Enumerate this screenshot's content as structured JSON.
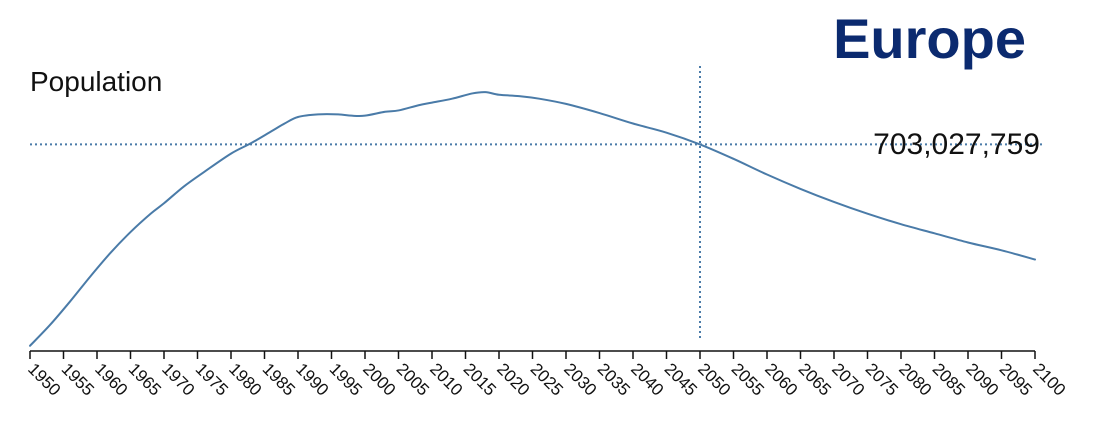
{
  "title": "Europe",
  "colors": {
    "title": "#0b2a6f",
    "line": "#4a7ba8",
    "crosshair": "#4a7ba8",
    "axis": "#111111"
  },
  "readout": {
    "year": 2050,
    "value_text": "703,027,759"
  },
  "chart_data": {
    "type": "line",
    "title": "Europe",
    "ylabel": "Population",
    "xlabel": "",
    "xlim": [
      1950,
      2100
    ],
    "ylim": [
      545000000,
      763000000
    ],
    "grid": false,
    "legend": "none",
    "x_ticks": [
      1950,
      1955,
      1960,
      1965,
      1970,
      1975,
      1980,
      1985,
      1990,
      1995,
      2000,
      2005,
      2010,
      2015,
      2020,
      2025,
      2030,
      2035,
      2040,
      2045,
      2050,
      2055,
      2060,
      2065,
      2070,
      2075,
      2080,
      2085,
      2090,
      2095,
      2100
    ],
    "series": [
      {
        "x": [
          1950,
          1953,
          1956,
          1959,
          1962,
          1965,
          1968,
          1970,
          1973,
          1976,
          1980,
          1983,
          1986,
          1988,
          1990,
          1993,
          1996,
          1998,
          2000,
          2003,
          2005,
          2008,
          2010,
          2013,
          2016,
          2018,
          2020,
          2023,
          2026,
          2030,
          2035,
          2040,
          2045,
          2050,
          2055,
          2060,
          2065,
          2070,
          2075,
          2080,
          2085,
          2090,
          2095,
          2100
        ],
        "y": [
          549000000,
          565000000,
          583000000,
          602000000,
          620000000,
          636000000,
          650000000,
          658000000,
          671000000,
          682000000,
          696000000,
          704000000,
          713000000,
          719000000,
          724000000,
          726000000,
          726000000,
          725000000,
          725000000,
          728000000,
          729000000,
          733000000,
          735000000,
          738000000,
          742000000,
          743000000,
          741000000,
          740000000,
          738000000,
          734000000,
          727000000,
          719000000,
          712000000,
          703027759,
          692000000,
          680000000,
          669000000,
          659000000,
          650000000,
          642000000,
          635000000,
          628000000,
          622000000,
          615000000
        ]
      }
    ]
  }
}
